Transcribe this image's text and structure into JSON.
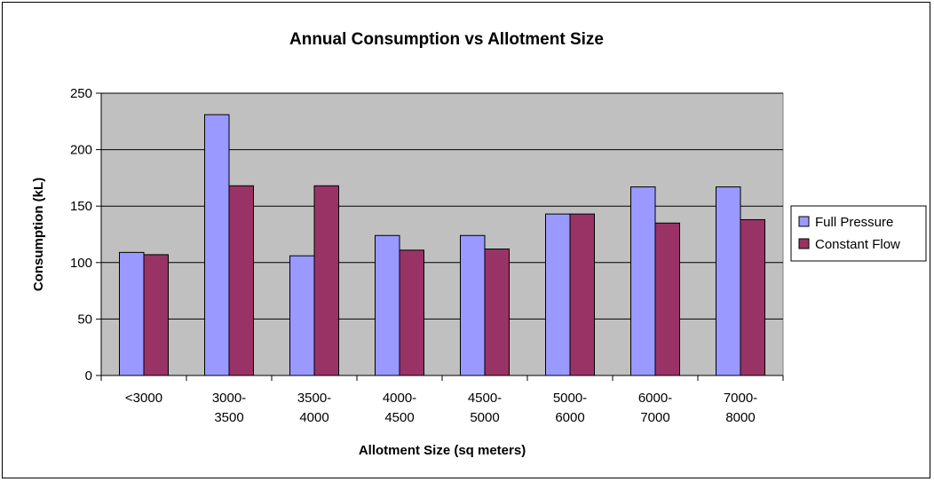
{
  "chart_data": {
    "type": "bar",
    "title": "Annual Consumption vs Allotment Size",
    "xlabel": "Allotment Size (sq meters)",
    "ylabel": "Consumption (kL)",
    "ylim": [
      0,
      250
    ],
    "yticks": [
      "0",
      "50",
      "100",
      "150",
      "200",
      "250"
    ],
    "ytick_values": [
      0,
      50,
      100,
      150,
      200,
      250
    ],
    "categories": [
      [
        "<3000"
      ],
      [
        "3000-",
        "3500"
      ],
      [
        "3500-",
        "4000"
      ],
      [
        "4000-",
        "4500"
      ],
      [
        "4500-",
        "5000"
      ],
      [
        "5000-",
        "6000"
      ],
      [
        "6000-",
        "7000"
      ],
      [
        "7000-",
        "8000"
      ]
    ],
    "series": [
      {
        "name": "Full Pressure",
        "color": "#9999ff",
        "values": [
          109,
          231,
          106,
          124,
          124,
          143,
          167,
          167
        ]
      },
      {
        "name": "Constant Flow",
        "color": "#993366",
        "values": [
          107,
          168,
          168,
          111,
          112,
          143,
          135,
          138
        ]
      }
    ],
    "grid": true,
    "plot_background": "#c0c0c0",
    "legend": "right"
  }
}
